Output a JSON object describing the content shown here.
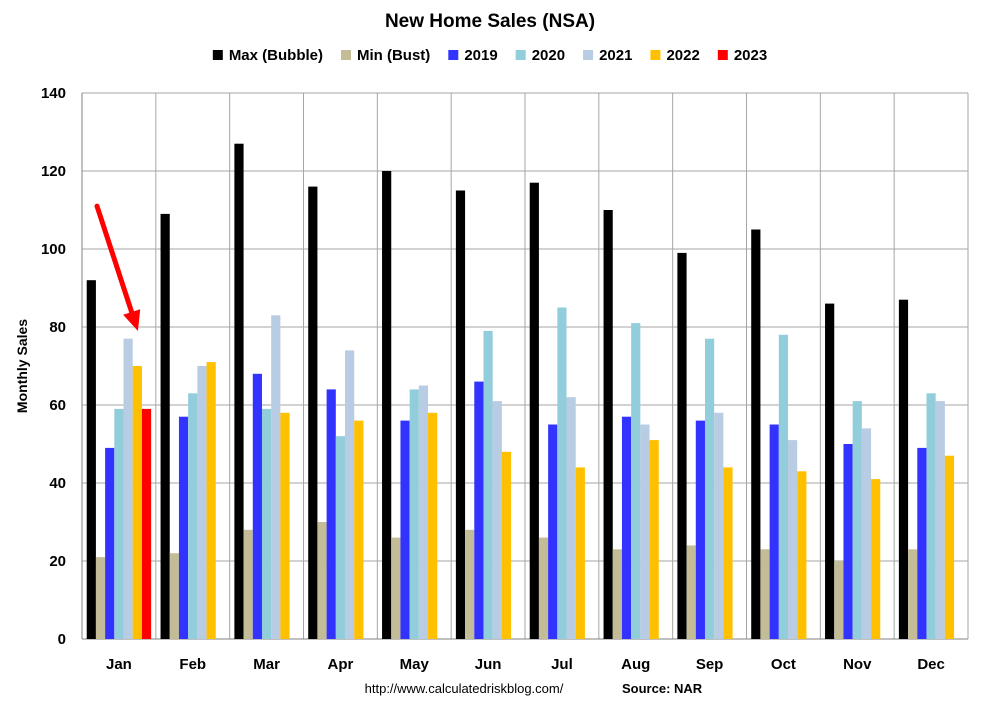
{
  "chart_data": {
    "type": "bar",
    "title": "New Home Sales (NSA)",
    "ylabel": "Monthly Sales",
    "xlabel": "",
    "ylim": [
      0,
      140
    ],
    "yticks": [
      0,
      20,
      40,
      60,
      80,
      100,
      120,
      140
    ],
    "grid": true,
    "legend_position": "top",
    "categories": [
      "Jan",
      "Feb",
      "Mar",
      "Apr",
      "May",
      "Jun",
      "Jul",
      "Aug",
      "Sep",
      "Oct",
      "Nov",
      "Dec"
    ],
    "series": [
      {
        "name": "Max (Bubble)",
        "color": "#000000",
        "values": [
          92,
          109,
          127,
          116,
          120,
          115,
          117,
          110,
          99,
          105,
          86,
          87
        ]
      },
      {
        "name": "Min (Bust)",
        "color": "#c4bc96",
        "values": [
          21,
          22,
          28,
          30,
          26,
          28,
          26,
          23,
          24,
          23,
          20,
          23
        ]
      },
      {
        "name": "2019",
        "color": "#3333ff",
        "values": [
          49,
          57,
          68,
          64,
          56,
          66,
          55,
          57,
          56,
          55,
          50,
          49
        ]
      },
      {
        "name": "2020",
        "color": "#92cddc",
        "values": [
          59,
          63,
          59,
          52,
          64,
          79,
          85,
          81,
          77,
          78,
          61,
          63
        ]
      },
      {
        "name": "2021",
        "color": "#b8cce4",
        "values": [
          77,
          70,
          83,
          74,
          65,
          61,
          62,
          55,
          58,
          51,
          54,
          61
        ]
      },
      {
        "name": "2022",
        "color": "#ffc000",
        "values": [
          70,
          71,
          58,
          56,
          58,
          48,
          44,
          51,
          44,
          43,
          41,
          47
        ]
      },
      {
        "name": "2023",
        "color": "#ff0000",
        "values": [
          59,
          null,
          null,
          null,
          null,
          null,
          null,
          null,
          null,
          null,
          null,
          null
        ]
      }
    ],
    "annotation": {
      "type": "arrow",
      "color": "#ff0000",
      "points_to": "Jan 2023"
    }
  },
  "footer": {
    "url": "http://www.calculatedriskblog.com/",
    "source": "Source: NAR"
  }
}
